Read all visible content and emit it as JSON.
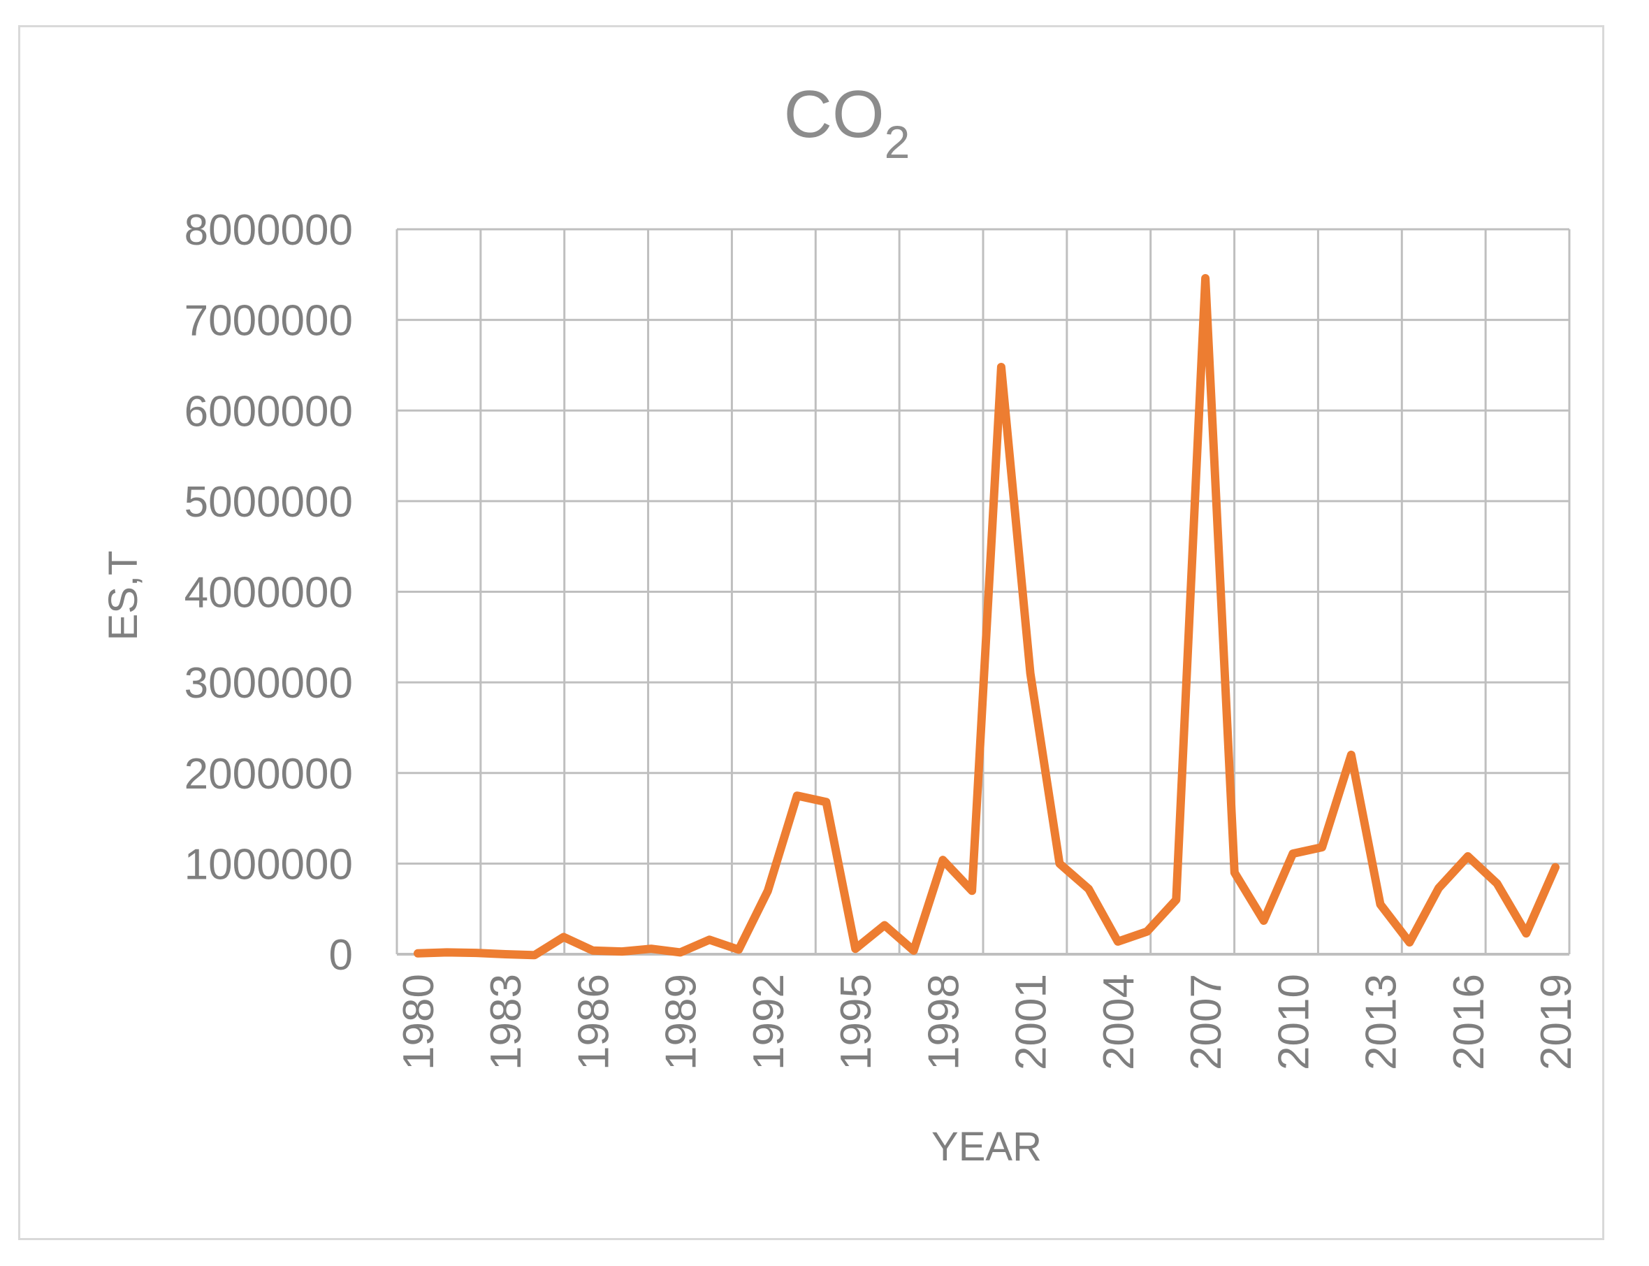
{
  "chart_data": {
    "type": "line",
    "title": "CO",
    "title_subscript": "2",
    "xlabel": "YEAR",
    "ylabel": "ES,T",
    "ylim": [
      0,
      8000000
    ],
    "y_ticks": [
      "0",
      "1000000",
      "2000000",
      "3000000",
      "4000000",
      "5000000",
      "6000000",
      "7000000",
      "8000000"
    ],
    "x_tick_labels": [
      "1980",
      "1983",
      "1986",
      "1989",
      "1992",
      "1995",
      "1998",
      "2001",
      "2004",
      "2007",
      "2010",
      "2013",
      "2016",
      "2019"
    ],
    "x": [
      1980,
      1981,
      1982,
      1983,
      1984,
      1985,
      1986,
      1987,
      1988,
      1989,
      1990,
      1991,
      1992,
      1993,
      1994,
      1995,
      1996,
      1997,
      1998,
      1999,
      2000,
      2001,
      2002,
      2003,
      2004,
      2005,
      2006,
      2007,
      2008,
      2009,
      2010,
      2011,
      2012,
      2013,
      2014,
      2015,
      2016,
      2017,
      2018,
      2019
    ],
    "series": [
      {
        "name": "CO2",
        "color": "#ed7d31",
        "values": [
          10000,
          20000,
          15000,
          0,
          -10000,
          190000,
          40000,
          30000,
          60000,
          20000,
          160000,
          50000,
          700000,
          1750000,
          1680000,
          60000,
          320000,
          40000,
          1040000,
          700000,
          6480000,
          3100000,
          1000000,
          720000,
          140000,
          250000,
          600000,
          7460000,
          900000,
          370000,
          1110000,
          1180000,
          2200000,
          550000,
          130000,
          730000,
          1080000,
          780000,
          230000,
          960000
        ]
      }
    ],
    "grid": true,
    "legend": "none"
  }
}
